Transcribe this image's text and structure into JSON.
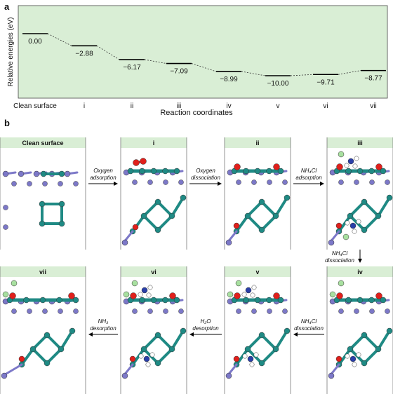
{
  "panel_a": {
    "label": "a",
    "ylabel": "Relative energies (eV)",
    "xlabel": "Reaction coordinates",
    "background": "#d9eed5",
    "levels": [
      {
        "x": "Clean surface",
        "value": "0.00",
        "y": 0.0
      },
      {
        "x": "i",
        "value": "−2.88",
        "y": -2.88
      },
      {
        "x": "ii",
        "value": "−6.17",
        "y": -6.17
      },
      {
        "x": "iii",
        "value": "−7.09",
        "y": -7.09
      },
      {
        "x": "iv",
        "value": "−8.99",
        "y": -8.99
      },
      {
        "x": "v",
        "value": "−10.00",
        "y": -10.0
      },
      {
        "x": "vi",
        "value": "−9.71",
        "y": -9.71
      },
      {
        "x": "vii",
        "value": "−8.77",
        "y": -8.77
      }
    ]
  },
  "panel_b": {
    "label": "b",
    "header_color": "#d9eed5",
    "top_titles": [
      "Clean surface",
      "i",
      "ii",
      "iii"
    ],
    "bottom_titles": [
      "vii",
      "vi",
      "v",
      "iv"
    ],
    "top_steps": [
      [
        "Oxygen",
        "adsorption"
      ],
      [
        "Oxygen",
        "dissociation"
      ],
      [
        "NH₄Cl",
        "adsorption"
      ]
    ],
    "vertical_step": [
      "NH₄Cl",
      "dissociation"
    ],
    "bottom_steps": [
      [
        "NH₃",
        "desorption"
      ],
      [
        "H₂O",
        "desorption"
      ],
      [
        "NH₄Cl",
        "dissociation"
      ]
    ]
  },
  "colors": {
    "metal": "#7c78c8",
    "cluster": "#1f8a84",
    "oxygen": "#e0201c",
    "nitrogen": "#2a3fa8",
    "hydrogen": "#ffffff",
    "chlorine": "#a8e0a0"
  }
}
